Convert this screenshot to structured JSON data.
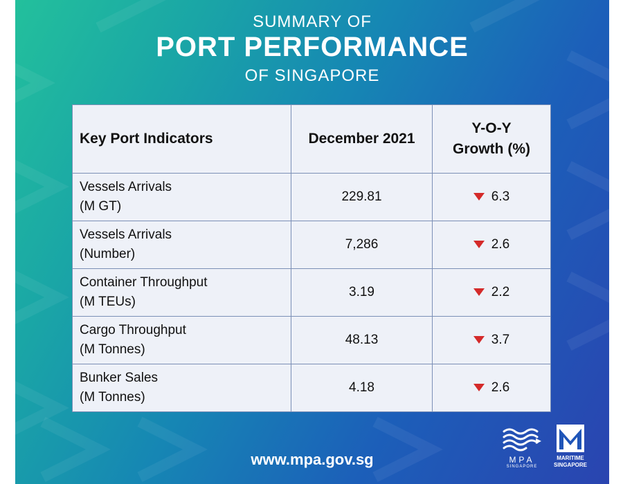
{
  "header": {
    "line1": "SUMMARY OF",
    "line2": "PORT PERFORMANCE",
    "line3": "OF SINGAPORE"
  },
  "table": {
    "columns": [
      "Key Port Indicators",
      "December 2021",
      "Y-O-Y Growth (%)"
    ],
    "rows": [
      {
        "indicator_line1": "Vessels Arrivals",
        "indicator_line2": "(M GT)",
        "value": "229.81",
        "growth": "6.3",
        "direction": "down"
      },
      {
        "indicator_line1": "Vessels Arrivals",
        "indicator_line2": "(Number)",
        "value": "7,286",
        "growth": "2.6",
        "direction": "down"
      },
      {
        "indicator_line1": "Container Throughput",
        "indicator_line2": "(M TEUs)",
        "value": "3.19",
        "growth": "2.2",
        "direction": "down"
      },
      {
        "indicator_line1": "Cargo Throughput",
        "indicator_line2": "(M Tonnes)",
        "value": "48.13",
        "growth": "3.7",
        "direction": "down"
      },
      {
        "indicator_line1": "Bunker Sales",
        "indicator_line2": "(M Tonnes)",
        "value": "4.18",
        "growth": "2.6",
        "direction": "down"
      }
    ]
  },
  "footer": {
    "url": "www.mpa.gov.sg",
    "mpa_logo_text": "MPA",
    "mpa_logo_subtext": "SINGAPORE",
    "maritime_logo_line1": "MARITIME",
    "maritime_logo_line2": "SINGAPORE"
  },
  "colors": {
    "gradient_start": "#23c09c",
    "gradient_end": "#2a44b0",
    "table_bg": "#eef1f8",
    "decline_arrow": "#d42a2a"
  },
  "icons": {
    "decline": "down-triangle-icon",
    "mpa": "mpa-wave-logo",
    "maritime": "maritime-m-logo"
  }
}
